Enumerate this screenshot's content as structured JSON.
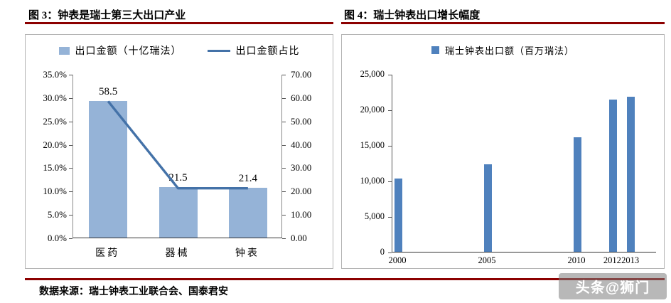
{
  "figure3": {
    "title": "图 3：钟表是瑞士第三大出口产业",
    "legend": {
      "bar": "出口金额（十亿瑞法）",
      "line": "出口金额占比"
    }
  },
  "figure4": {
    "title": "图 4：瑞士钟表出口增长幅度",
    "legend": {
      "bar": "瑞士钟表出口额（百万瑞法）"
    }
  },
  "source_note": "数据来源：瑞士钟表工业联合会、国泰君安",
  "watermark": "头条@狮门",
  "colors": {
    "accent_rule": "#8c0000",
    "bar_light": "#95b3d7",
    "bar_dark": "#4f81bd",
    "line": "#4472a8",
    "axis": "#333333"
  },
  "chart_data": [
    {
      "type": "bar",
      "title": "图 3：钟表是瑞士第三大出口产业",
      "categories": [
        "医药",
        "器械",
        "钟表"
      ],
      "series": [
        {
          "name": "出口金额（十亿瑞法）",
          "type": "bar",
          "axis": "right",
          "values": [
            58.5,
            21.5,
            21.4
          ]
        },
        {
          "name": "出口金额占比",
          "type": "line",
          "axis": "left",
          "unit": "%",
          "values": [
            29.3,
            10.7,
            10.7
          ]
        }
      ],
      "bar_labels": [
        "58.5",
        "21.5",
        "21.4"
      ],
      "left_axis": {
        "min": 0,
        "max": 35,
        "ticks": [
          "35.0%",
          "30.0%",
          "25.0%",
          "20.0%",
          "15.0%",
          "10.0%",
          "5.0%",
          "0.0%"
        ]
      },
      "right_axis": {
        "min": 0,
        "max": 70,
        "ticks": [
          "70.00",
          "60.00",
          "50.00",
          "40.00",
          "30.00",
          "20.00",
          "10.00",
          "0.00"
        ]
      },
      "grid": false,
      "legend_position": "top"
    },
    {
      "type": "bar",
      "title": "图 4：瑞士钟表出口增长幅度",
      "series_name": "瑞士钟表出口额（百万瑞法）",
      "x": [
        2000,
        2005,
        2010,
        2012,
        2013
      ],
      "x_labels": [
        "2000",
        "2005",
        "2010",
        "2012",
        "2013"
      ],
      "values": [
        10300,
        12300,
        16100,
        21400,
        21800
      ],
      "ylim": [
        0,
        25000
      ],
      "yticks": [
        "25,000",
        "20,000",
        "15,000",
        "10,000",
        "5,000",
        "0"
      ],
      "grid": false,
      "legend_position": "top"
    }
  ]
}
